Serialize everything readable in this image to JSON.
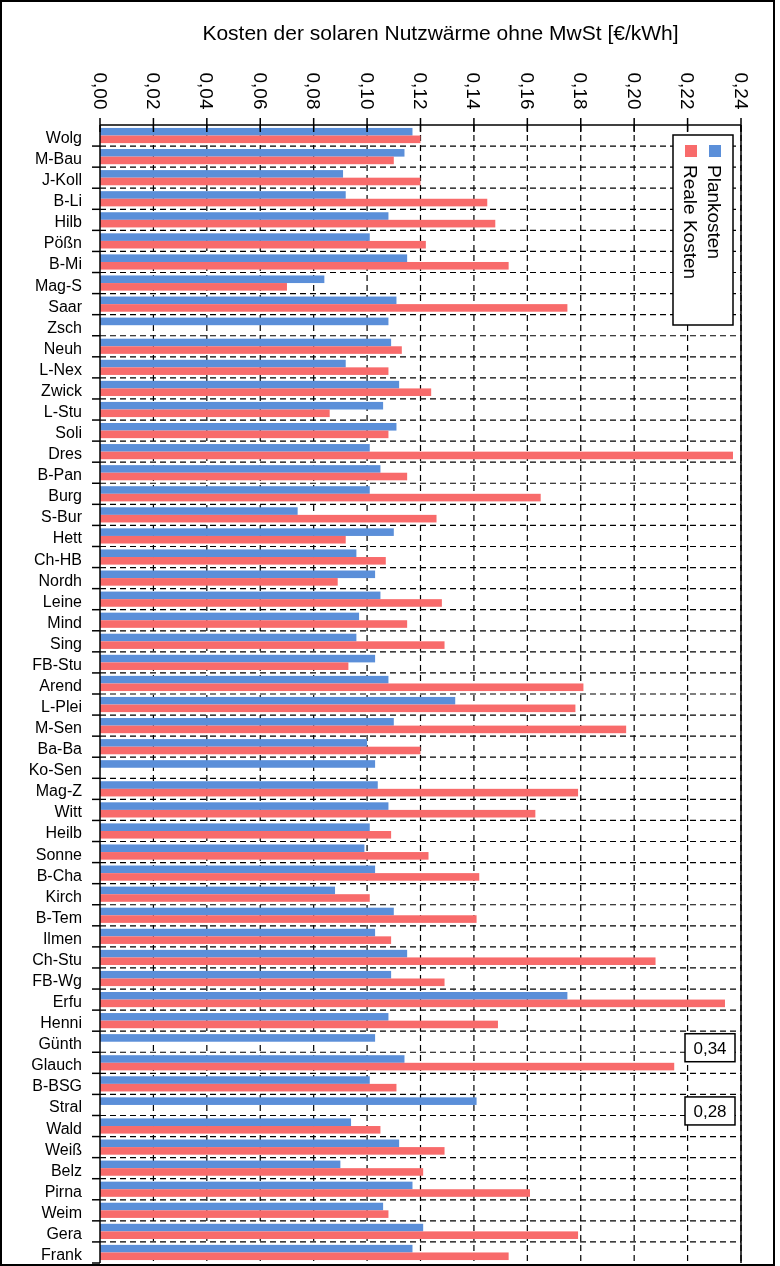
{
  "chart_data": {
    "type": "bar",
    "orientation": "horizontal",
    "title": "Kosten der solaren Nutzwärme ohne MwSt [€/kWh]",
    "categories": [
      "Wolg",
      "M-Bau",
      "J-Koll",
      "B-Li",
      "Hilb",
      "Pößn",
      "B-Mi",
      "Mag-S",
      "Saar",
      "Zsch",
      "Neuh",
      "L-Nex",
      "Zwick",
      "L-Stu",
      "Soli",
      "Dres",
      "B-Pan",
      "Burg",
      "S-Bur",
      "Hett",
      "Ch-HB",
      "Nordh",
      "Leine",
      "Mind",
      "Sing",
      "FB-Stu",
      "Arend",
      "L-Plei",
      "M-Sen",
      "Ba-Ba",
      "Ko-Sen",
      "Mag-Z",
      "Witt",
      "Heilb",
      "Sonne",
      "B-Cha",
      "Kirch",
      "B-Tem",
      "Ilmen",
      "Ch-Stu",
      "FB-Wg",
      "Erfu",
      "Henni",
      "Günth",
      "Glauch",
      "B-BSG",
      "Stral",
      "Wald",
      "Weiß",
      "Belz",
      "Pirna",
      "Weim",
      "Gera",
      "Frank"
    ],
    "series": [
      {
        "name": "Plankosten",
        "color": "#5b8fd9",
        "values": [
          0.117,
          0.114,
          0.091,
          0.092,
          0.108,
          0.101,
          0.115,
          0.084,
          0.111,
          0.108,
          0.109,
          0.092,
          0.112,
          0.106,
          0.111,
          0.101,
          0.105,
          0.101,
          0.074,
          0.11,
          0.096,
          0.103,
          0.105,
          0.097,
          0.096,
          0.103,
          0.108,
          0.133,
          0.11,
          0.1,
          0.103,
          0.104,
          0.108,
          0.101,
          0.099,
          0.103,
          0.088,
          0.11,
          0.103,
          0.115,
          0.109,
          0.175,
          0.108,
          0.103,
          0.114,
          0.101,
          0.141,
          0.094,
          0.112,
          0.09,
          0.117,
          0.106,
          0.121,
          0.117
        ]
      },
      {
        "name": "Reale Kosten",
        "color": "#f86b6b",
        "values": [
          0.12,
          0.11,
          0.12,
          0.145,
          0.148,
          0.122,
          0.153,
          0.07,
          0.175,
          null,
          0.113,
          0.108,
          0.124,
          0.086,
          0.108,
          0.237,
          0.115,
          0.165,
          0.126,
          0.092,
          0.107,
          0.089,
          0.128,
          0.115,
          0.129,
          0.093,
          0.181,
          0.178,
          0.197,
          0.12,
          null,
          0.179,
          0.163,
          0.109,
          0.123,
          0.142,
          0.101,
          0.141,
          0.109,
          0.208,
          0.129,
          0.234,
          0.149,
          null,
          0.215,
          0.111,
          null,
          0.105,
          0.129,
          0.121,
          0.161,
          0.108,
          0.179,
          0.153
        ],
        "value_labels": [
          null,
          null,
          null,
          null,
          null,
          null,
          null,
          null,
          null,
          null,
          null,
          null,
          null,
          null,
          null,
          null,
          null,
          null,
          null,
          null,
          null,
          null,
          null,
          null,
          null,
          null,
          null,
          null,
          null,
          null,
          null,
          null,
          null,
          null,
          null,
          null,
          null,
          null,
          null,
          null,
          null,
          null,
          null,
          "0,34",
          null,
          null,
          "0,28",
          null,
          null,
          null,
          null,
          null,
          null,
          null
        ]
      }
    ],
    "xlim": [
      0,
      0.24
    ],
    "xticks": [
      {
        "value": 0,
        "label": "0,00"
      },
      {
        "value": 0.02,
        "label": "0,02"
      },
      {
        "value": 0.04,
        "label": "0,04"
      },
      {
        "value": 0.06,
        "label": "0,06"
      },
      {
        "value": 0.08,
        "label": "0,08"
      },
      {
        "value": 0.1,
        "label": "0,10"
      },
      {
        "value": 0.12,
        "label": "0,12"
      },
      {
        "value": 0.14,
        "label": "0,14"
      },
      {
        "value": 0.16,
        "label": "0,16"
      },
      {
        "value": 0.18,
        "label": "0,18"
      },
      {
        "value": 0.2,
        "label": "0,20"
      },
      {
        "value": 0.22,
        "label": "0,22"
      },
      {
        "value": 0.24,
        "label": "0,24"
      }
    ],
    "grid": true,
    "legend": "top right"
  }
}
